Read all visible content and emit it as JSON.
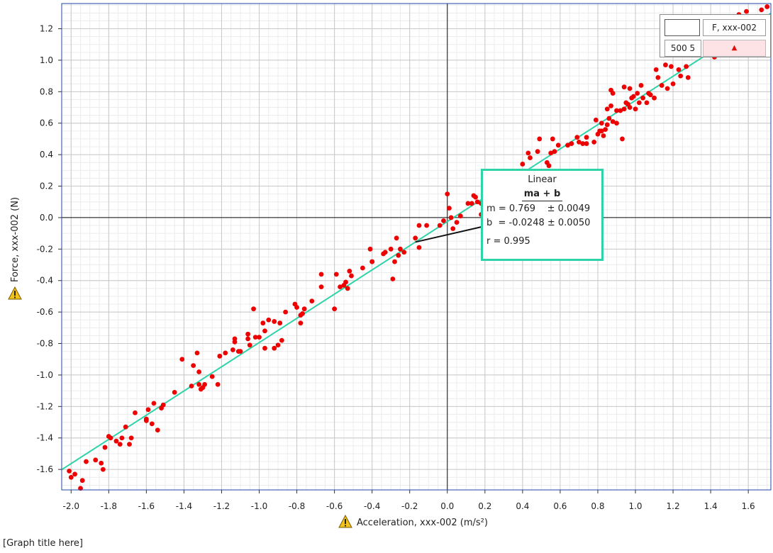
{
  "graph_title": "[Graph title here]",
  "legend": {
    "series_label": "F, xxx-002",
    "point_count": "500 5",
    "marker": "triangle-up-icon"
  },
  "fit_box": {
    "title": "Linear",
    "equation": "ma + b",
    "m_label": "m",
    "m_value": "= 0.769",
    "m_error": "± 0.0049",
    "b_label": "b",
    "b_value": "= -0.0248",
    "b_error": "± 0.0050",
    "r_label": "r",
    "r_value": "= 0.995"
  },
  "colors": {
    "points": "#ee0000",
    "fit_line": "#2fd3a8",
    "grid_major": "#c8c8c8",
    "grid_minor": "#ececec",
    "plot_border": "#2244aa",
    "warning": "#f2c21b"
  },
  "chart_data": {
    "type": "scatter",
    "title": "[Graph title here]",
    "xlabel": "Acceleration, xxx-002 (m/s²)",
    "ylabel": "Force, xxx-002 (N)",
    "xlim": [
      -2.05,
      1.72
    ],
    "ylim": [
      -1.73,
      1.36
    ],
    "x_ticks": [
      -2.0,
      -1.8,
      -1.6,
      -1.4,
      -1.2,
      -1.0,
      -0.8,
      -0.6,
      -0.4,
      -0.2,
      0.0,
      0.2,
      0.4,
      0.6,
      0.8,
      1.0,
      1.2,
      1.4,
      1.6
    ],
    "x_tick_labels": [
      "-2.0",
      "-1.8",
      "-1.6",
      "-1.4",
      "-1.2",
      "-1.0",
      "-0.8",
      "-0.6",
      "-0.4",
      "-0.2",
      "0.0",
      "0.2",
      "0.4",
      "0.6",
      "0.8",
      "1.0",
      "1.2",
      "1.4",
      "1.6"
    ],
    "y_ticks": [
      -1.6,
      -1.4,
      -1.2,
      -1.0,
      -0.8,
      -0.6,
      -0.4,
      -0.2,
      0.0,
      0.2,
      0.4,
      0.6,
      0.8,
      1.0,
      1.2
    ],
    "y_tick_labels": [
      "-1.6",
      "-1.4",
      "-1.2",
      "-1.0",
      "-0.8",
      "-0.6",
      "-0.4",
      "-0.2",
      "0.0",
      "0.2",
      "0.4",
      "0.6",
      "0.8",
      "1.0",
      "1.2"
    ],
    "grid": true,
    "legend_position": "top-right",
    "fit": {
      "type": "linear",
      "m": 0.769,
      "b": -0.0248,
      "r": 0.995
    },
    "series": [
      {
        "name": "F, xxx-002",
        "points": [
          [
            -2.01,
            -1.61
          ],
          [
            -2.0,
            -1.65
          ],
          [
            -1.98,
            -1.63
          ],
          [
            -1.95,
            -1.72
          ],
          [
            -1.94,
            -1.67
          ],
          [
            -1.92,
            -1.55
          ],
          [
            -1.87,
            -1.54
          ],
          [
            -1.84,
            -1.56
          ],
          [
            -1.83,
            -1.6
          ],
          [
            -1.82,
            -1.46
          ],
          [
            -1.8,
            -1.39
          ],
          [
            -1.79,
            -1.4
          ],
          [
            -1.76,
            -1.42
          ],
          [
            -1.74,
            -1.44
          ],
          [
            -1.73,
            -1.4
          ],
          [
            -1.71,
            -1.33
          ],
          [
            -1.69,
            -1.44
          ],
          [
            -1.68,
            -1.4
          ],
          [
            -1.66,
            -1.24
          ],
          [
            -1.6,
            -1.29
          ],
          [
            -1.6,
            -1.28
          ],
          [
            -1.59,
            -1.22
          ],
          [
            -1.57,
            -1.31
          ],
          [
            -1.56,
            -1.18
          ],
          [
            -1.54,
            -1.35
          ],
          [
            -1.52,
            -1.21
          ],
          [
            -1.51,
            -1.19
          ],
          [
            -1.45,
            -1.11
          ],
          [
            -1.41,
            -0.9
          ],
          [
            -1.36,
            -1.07
          ],
          [
            -1.35,
            -0.94
          ],
          [
            -1.33,
            -0.86
          ],
          [
            -1.32,
            -1.06
          ],
          [
            -1.32,
            -0.98
          ],
          [
            -1.31,
            -1.09
          ],
          [
            -1.3,
            -1.08
          ],
          [
            -1.29,
            -1.06
          ],
          [
            -1.25,
            -1.01
          ],
          [
            -1.22,
            -1.06
          ],
          [
            -1.21,
            -0.88
          ],
          [
            -1.18,
            -0.86
          ],
          [
            -1.14,
            -0.84
          ],
          [
            -1.13,
            -0.77
          ],
          [
            -1.13,
            -0.79
          ],
          [
            -1.11,
            -0.85
          ],
          [
            -1.1,
            -0.85
          ],
          [
            -1.06,
            -0.74
          ],
          [
            -1.06,
            -0.77
          ],
          [
            -1.05,
            -0.81
          ],
          [
            -1.03,
            -0.58
          ],
          [
            -1.02,
            -0.76
          ],
          [
            -1.0,
            -0.76
          ],
          [
            -0.98,
            -0.67
          ],
          [
            -0.97,
            -0.83
          ],
          [
            -0.97,
            -0.72
          ],
          [
            -0.95,
            -0.65
          ],
          [
            -0.92,
            -0.83
          ],
          [
            -0.92,
            -0.66
          ],
          [
            -0.9,
            -0.81
          ],
          [
            -0.89,
            -0.67
          ],
          [
            -0.88,
            -0.78
          ],
          [
            -0.86,
            -0.6
          ],
          [
            -0.81,
            -0.55
          ],
          [
            -0.8,
            -0.57
          ],
          [
            -0.78,
            -0.62
          ],
          [
            -0.78,
            -0.67
          ],
          [
            -0.77,
            -0.61
          ],
          [
            -0.76,
            -0.58
          ],
          [
            -0.72,
            -0.53
          ],
          [
            -0.67,
            -0.44
          ],
          [
            -0.67,
            -0.36
          ],
          [
            -0.6,
            -0.58
          ],
          [
            -0.59,
            -0.36
          ],
          [
            -0.57,
            -0.44
          ],
          [
            -0.55,
            -0.43
          ],
          [
            -0.54,
            -0.41
          ],
          [
            -0.53,
            -0.45
          ],
          [
            -0.52,
            -0.34
          ],
          [
            -0.51,
            -0.37
          ],
          [
            -0.45,
            -0.32
          ],
          [
            -0.41,
            -0.2
          ],
          [
            -0.4,
            -0.28
          ],
          [
            -0.4,
            -0.28
          ],
          [
            -0.34,
            -0.23
          ],
          [
            -0.33,
            -0.22
          ],
          [
            -0.3,
            -0.2
          ],
          [
            -0.29,
            -0.39
          ],
          [
            -0.28,
            -0.28
          ],
          [
            -0.27,
            -0.13
          ],
          [
            -0.26,
            -0.24
          ],
          [
            -0.25,
            -0.2
          ],
          [
            -0.23,
            -0.22
          ],
          [
            -0.17,
            -0.13
          ],
          [
            -0.15,
            -0.19
          ],
          [
            -0.15,
            -0.05
          ],
          [
            -0.11,
            -0.05
          ],
          [
            -0.04,
            -0.05
          ],
          [
            -0.02,
            -0.02
          ],
          [
            0.0,
            0.15
          ],
          [
            0.01,
            0.06
          ],
          [
            0.02,
            0.0
          ],
          [
            0.03,
            -0.07
          ],
          [
            0.05,
            -0.03
          ],
          [
            0.07,
            0.01
          ],
          [
            0.11,
            0.09
          ],
          [
            0.13,
            0.09
          ],
          [
            0.14,
            0.14
          ],
          [
            0.15,
            0.13
          ],
          [
            0.16,
            0.1
          ],
          [
            0.18,
            0.09
          ],
          [
            0.18,
            0.02
          ],
          [
            0.23,
            0.1
          ],
          [
            0.23,
            0.15
          ],
          [
            0.24,
            0.05
          ],
          [
            0.26,
            0.16
          ],
          [
            0.4,
            0.34
          ],
          [
            0.43,
            0.41
          ],
          [
            0.44,
            0.38
          ],
          [
            0.48,
            0.42
          ],
          [
            0.49,
            0.5
          ],
          [
            0.53,
            0.35
          ],
          [
            0.54,
            0.33
          ],
          [
            0.55,
            0.41
          ],
          [
            0.56,
            0.5
          ],
          [
            0.57,
            0.42
          ],
          [
            0.59,
            0.46
          ],
          [
            0.64,
            0.46
          ],
          [
            0.66,
            0.47
          ],
          [
            0.69,
            0.51
          ],
          [
            0.7,
            0.48
          ],
          [
            0.72,
            0.47
          ],
          [
            0.74,
            0.47
          ],
          [
            0.74,
            0.51
          ],
          [
            0.78,
            0.48
          ],
          [
            0.79,
            0.62
          ],
          [
            0.8,
            0.53
          ],
          [
            0.81,
            0.55
          ],
          [
            0.82,
            0.55
          ],
          [
            0.82,
            0.6
          ],
          [
            0.83,
            0.52
          ],
          [
            0.84,
            0.56
          ],
          [
            0.85,
            0.59
          ],
          [
            0.85,
            0.69
          ],
          [
            0.86,
            0.63
          ],
          [
            0.87,
            0.81
          ],
          [
            0.87,
            0.71
          ],
          [
            0.88,
            0.61
          ],
          [
            0.88,
            0.79
          ],
          [
            0.9,
            0.6
          ],
          [
            0.9,
            0.68
          ],
          [
            0.92,
            0.68
          ],
          [
            0.93,
            0.5
          ],
          [
            0.94,
            0.83
          ],
          [
            0.94,
            0.69
          ],
          [
            0.95,
            0.73
          ],
          [
            0.96,
            0.72
          ],
          [
            0.97,
            0.7
          ],
          [
            0.97,
            0.82
          ],
          [
            0.98,
            0.76
          ],
          [
            0.99,
            0.77
          ],
          [
            1.0,
            0.69
          ],
          [
            1.01,
            0.79
          ],
          [
            1.02,
            0.73
          ],
          [
            1.03,
            0.84
          ],
          [
            1.04,
            0.76
          ],
          [
            1.06,
            0.73
          ],
          [
            1.07,
            0.79
          ],
          [
            1.08,
            0.78
          ],
          [
            1.1,
            0.76
          ],
          [
            1.11,
            0.94
          ],
          [
            1.12,
            0.89
          ],
          [
            1.14,
            0.84
          ],
          [
            1.16,
            0.97
          ],
          [
            1.17,
            0.82
          ],
          [
            1.19,
            0.96
          ],
          [
            1.2,
            0.85
          ],
          [
            1.23,
            0.94
          ],
          [
            1.24,
            0.9
          ],
          [
            1.27,
            0.96
          ],
          [
            1.28,
            0.89
          ],
          [
            1.42,
            1.02
          ],
          [
            1.52,
            1.26
          ],
          [
            1.55,
            1.29
          ],
          [
            1.59,
            1.31
          ],
          [
            1.67,
            1.32
          ],
          [
            1.7,
            1.34
          ]
        ]
      }
    ]
  }
}
